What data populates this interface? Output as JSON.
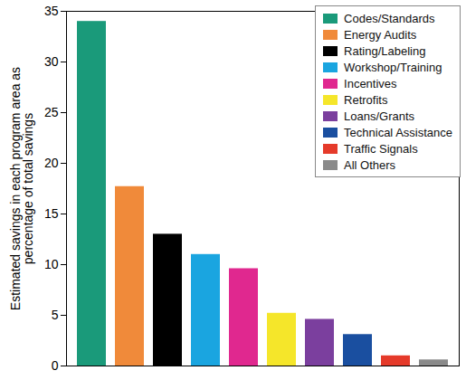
{
  "chart_data": {
    "type": "bar",
    "y_label": "Estimated savings in each program area as percentage of total savings",
    "categories": [
      "Codes/Standards",
      "Energy Audits",
      "Rating/Labeling",
      "Workshop/Training",
      "Incentives",
      "Retrofits",
      "Loans/Grants",
      "Technical Assistance",
      "Traffic Signals",
      "All Others"
    ],
    "values": [
      34,
      17.7,
      13,
      11,
      9.6,
      5.2,
      4.6,
      3.1,
      1.0,
      0.6
    ],
    "colors": [
      "#1a9a7a",
      "#f08a3a",
      "#000000",
      "#1aa5e0",
      "#e0288f",
      "#f5e62a",
      "#7b3f9e",
      "#1a4fa0",
      "#e53a2a",
      "#8a8a8a"
    ],
    "ylim": [
      0,
      35
    ],
    "yticks": [
      0,
      5,
      10,
      15,
      20,
      25,
      30,
      35
    ],
    "grid": false,
    "legend": "upper right",
    "tick_labels": "y"
  }
}
